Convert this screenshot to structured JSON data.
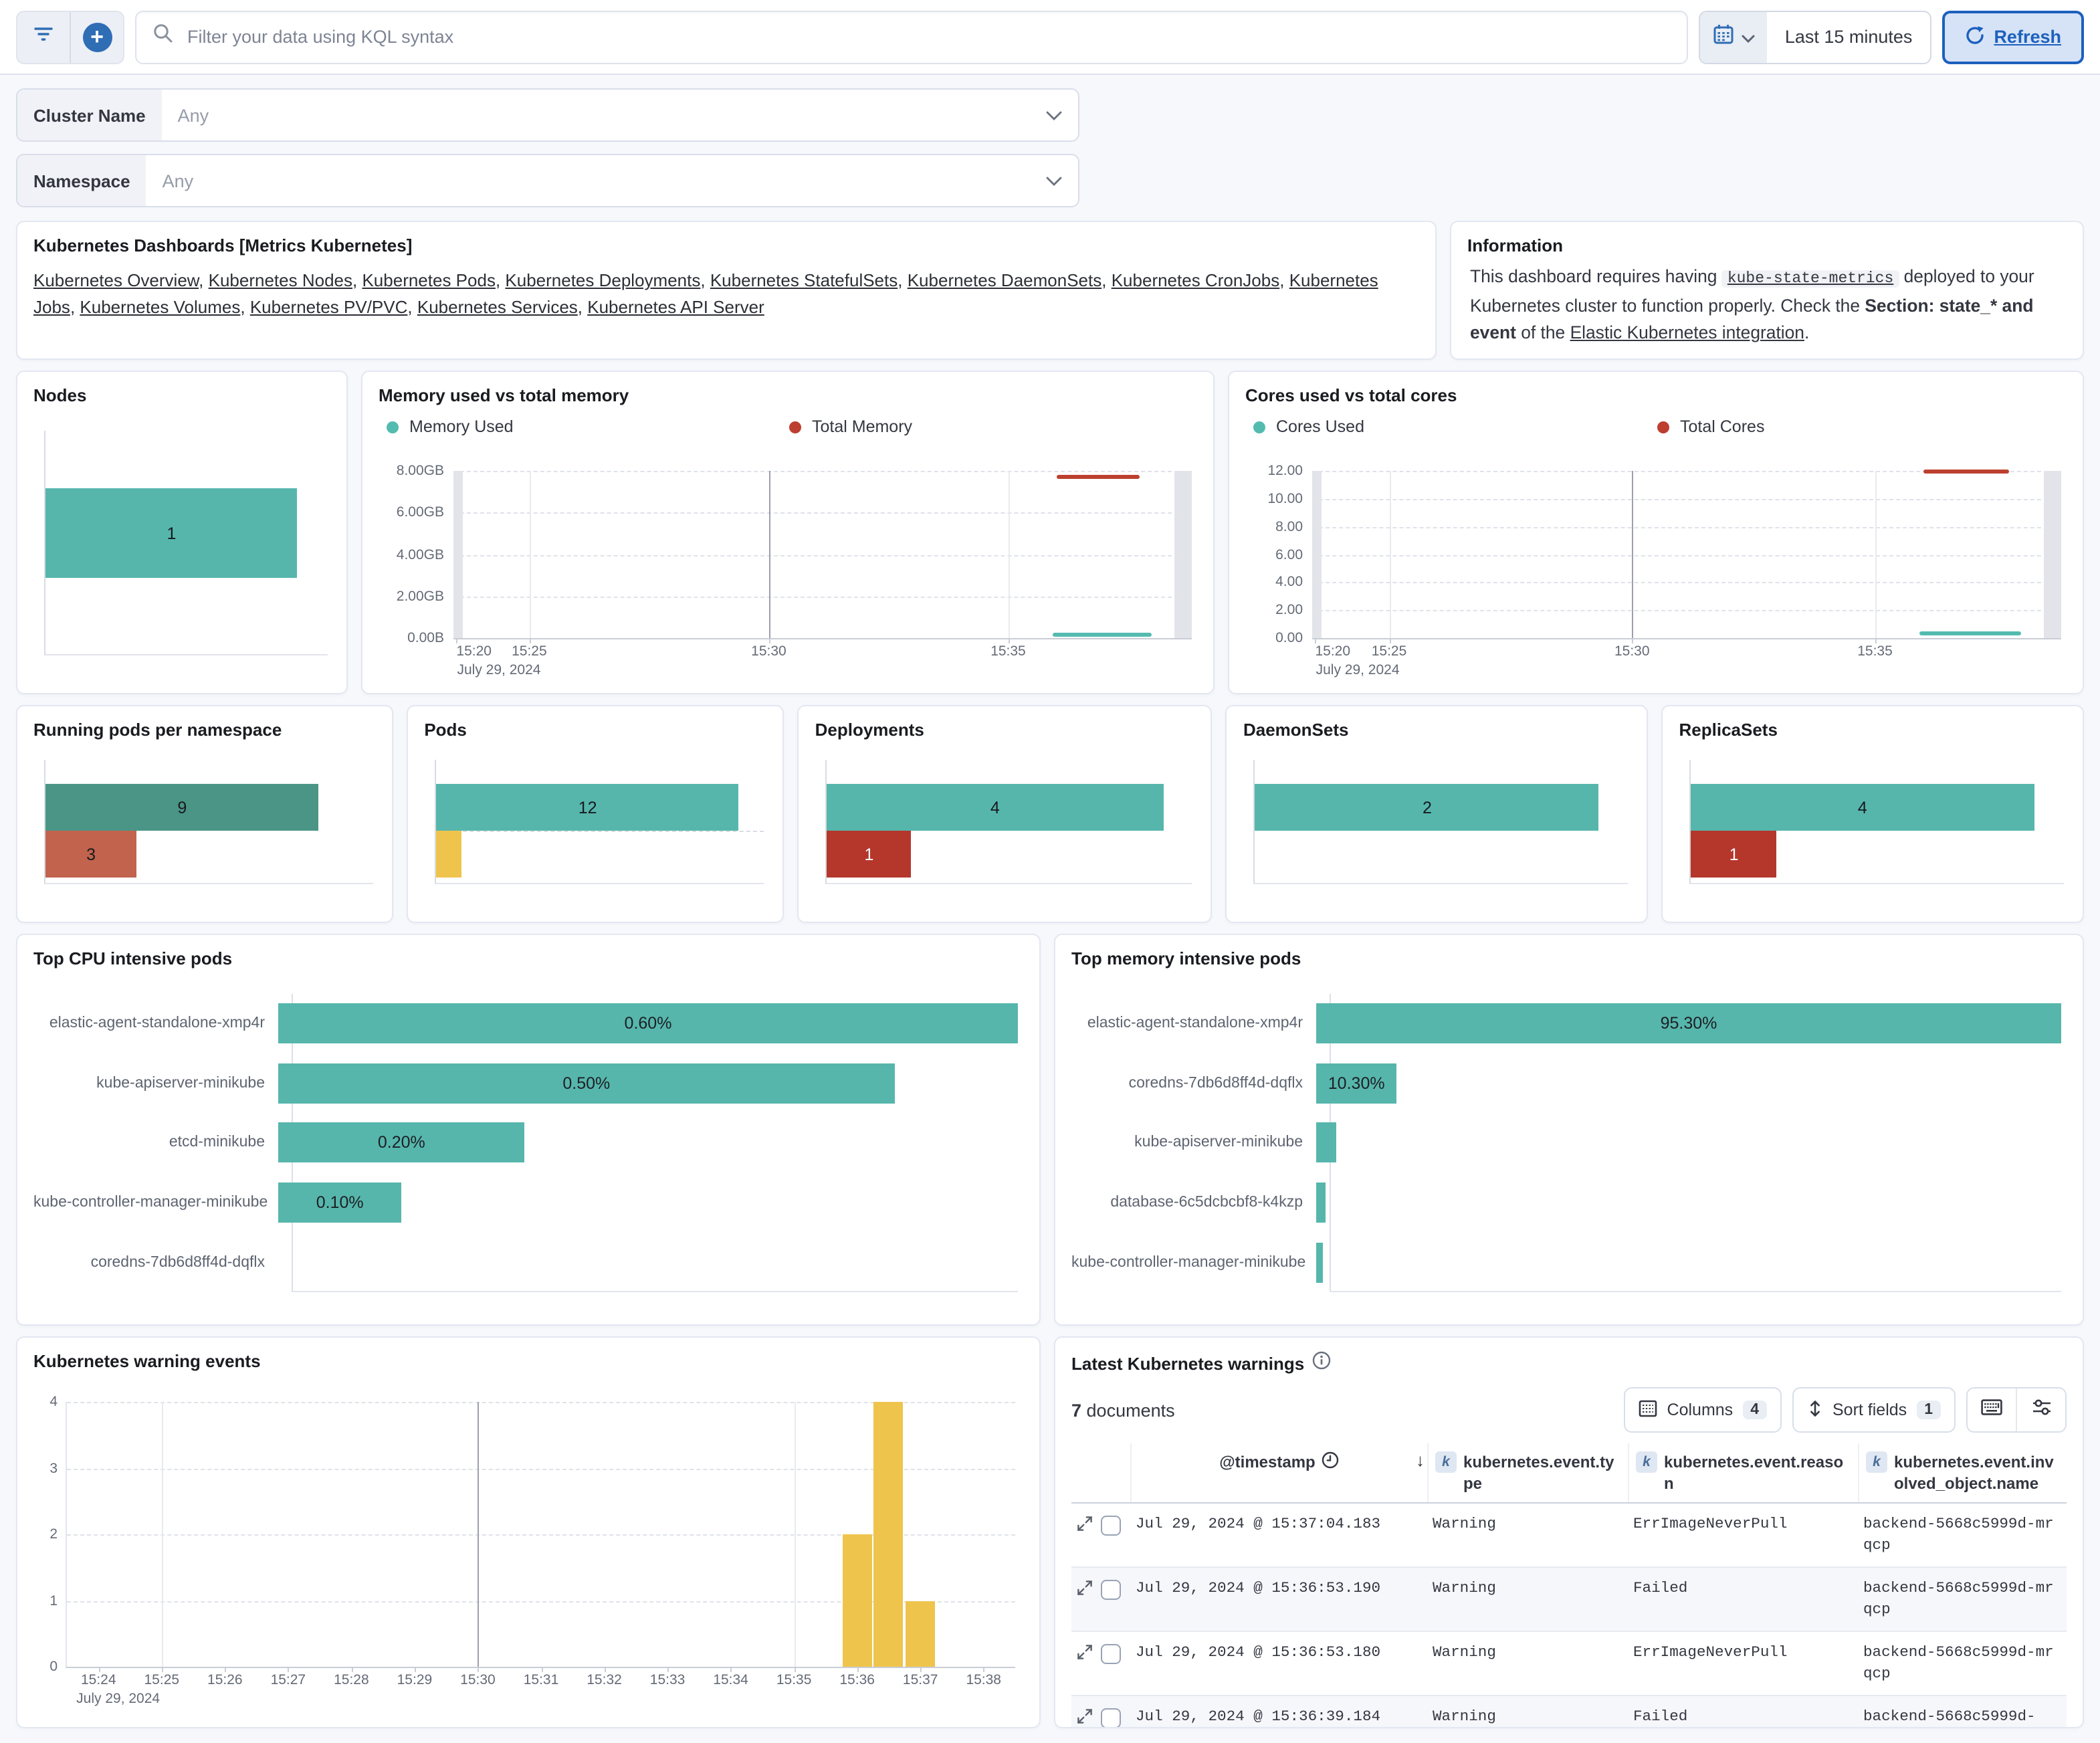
{
  "topbar": {
    "search_placeholder": "Filter your data using KQL syntax",
    "time_range": "Last 15 minutes",
    "refresh_label": "Refresh"
  },
  "filters": [
    {
      "label": "Cluster Name",
      "value": "Any"
    },
    {
      "label": "Namespace",
      "value": "Any"
    }
  ],
  "links_panel": {
    "title": "Kubernetes Dashboards [Metrics Kubernetes]",
    "links": [
      "Kubernetes Overview",
      "Kubernetes Nodes",
      "Kubernetes Pods",
      "Kubernetes Deployments",
      "Kubernetes StatefulSets",
      "Kubernetes DaemonSets",
      "Kubernetes CronJobs",
      "Kubernetes Jobs",
      "Kubernetes Volumes",
      "Kubernetes PV/PVC",
      "Kubernetes Services",
      "Kubernetes API Server"
    ]
  },
  "info_panel": {
    "title": "Information",
    "text_part1": "This dashboard requires having ",
    "code": "kube-state-metrics",
    "text_part2": " deployed to your Kubernetes cluster to function properly. Check the ",
    "bold": "Section: state_* and event",
    "text_part3": " of the ",
    "link": "Elastic Kubernetes integration",
    "text_part4": "."
  },
  "colors": {
    "teal": "#56b6ac",
    "dark_green": "#4a9586",
    "rust": "#c2634e",
    "dark_red": "#b5372c",
    "yellow": "#efc44d",
    "line_teal": "#54bbb0",
    "line_red": "#bd3f2f",
    "primary_blue": "#1d60bd"
  },
  "chart_data": [
    {
      "id": "nodes",
      "type": "bar",
      "orientation": "horizontal",
      "title": "Nodes",
      "axis_max": 1.12,
      "values": [
        1
      ],
      "labels": [
        "1"
      ],
      "colors": [
        "#56b6ac"
      ],
      "label_colors": [
        "#17191e"
      ]
    },
    {
      "id": "memory",
      "type": "line",
      "title": "Memory used vs total memory",
      "legend": [
        {
          "name": "Memory Used",
          "color": "#54bbb0"
        },
        {
          "name": "Total Memory",
          "color": "#bd3f2f"
        }
      ],
      "ylim": [
        0,
        8
      ],
      "yticks": [
        {
          "label": "8.00GB",
          "value": 8
        },
        {
          "label": "6.00GB",
          "value": 6
        },
        {
          "label": "4.00GB",
          "value": 4
        },
        {
          "label": "2.00GB",
          "value": 2
        },
        {
          "label": "0.00B",
          "value": 0
        }
      ],
      "x_domain": [
        "15:23:25",
        "15:38:50"
      ],
      "xticks": [
        {
          "label": "15:20",
          "time": "15:20:00"
        },
        {
          "label": "15:25",
          "time": "15:25:00",
          "grid": "light"
        },
        {
          "label": "15:30",
          "time": "15:30:00",
          "grid": "dark"
        },
        {
          "label": "15:35",
          "time": "15:35:00",
          "grid": "light"
        }
      ],
      "date_label": "July 29, 2024",
      "edge_bands": true,
      "series": [
        {
          "name": "Total Memory",
          "color": "#bd3f2f",
          "value": 7.65,
          "start": "15:36:00",
          "end": "15:37:45"
        },
        {
          "name": "Memory Used",
          "color": "#54bbb0",
          "value": 0.13,
          "start": "15:35:55",
          "end": "15:38:00"
        }
      ]
    },
    {
      "id": "cores",
      "type": "line",
      "title": "Cores used vs total cores",
      "legend": [
        {
          "name": "Cores Used",
          "color": "#54bbb0"
        },
        {
          "name": "Total Cores",
          "color": "#bd3f2f"
        }
      ],
      "ylim": [
        0,
        12
      ],
      "yticks": [
        {
          "label": "12.00",
          "value": 12
        },
        {
          "label": "10.00",
          "value": 10
        },
        {
          "label": "8.00",
          "value": 8
        },
        {
          "label": "6.00",
          "value": 6
        },
        {
          "label": "4.00",
          "value": 4
        },
        {
          "label": "2.00",
          "value": 2
        },
        {
          "label": "0.00",
          "value": 0
        }
      ],
      "x_domain": [
        "15:23:25",
        "15:38:50"
      ],
      "xticks": [
        {
          "label": "15:20",
          "time": "15:20:00"
        },
        {
          "label": "15:25",
          "time": "15:25:00",
          "grid": "light"
        },
        {
          "label": "15:30",
          "time": "15:30:00",
          "grid": "dark"
        },
        {
          "label": "15:35",
          "time": "15:35:00",
          "grid": "light"
        }
      ],
      "date_label": "July 29, 2024",
      "edge_bands": true,
      "series": [
        {
          "name": "Total Cores",
          "color": "#bd3f2f",
          "value": 11.9,
          "start": "15:36:00",
          "end": "15:37:45"
        },
        {
          "name": "Cores Used",
          "color": "#54bbb0",
          "value": 0.25,
          "start": "15:35:55",
          "end": "15:38:00"
        }
      ]
    },
    {
      "id": "running_pods",
      "type": "bar",
      "orientation": "horizontal",
      "title": "Running pods per namespace",
      "axis_max": 10.8,
      "values": [
        9,
        3
      ],
      "labels": [
        "9",
        "3"
      ],
      "colors": [
        "#4a9586",
        "#c2634e"
      ],
      "label_colors": [
        "#17191e",
        "#17191e"
      ]
    },
    {
      "id": "pods",
      "type": "bar",
      "orientation": "horizontal",
      "title": "Pods",
      "axis_max": 13,
      "values": [
        12,
        1
      ],
      "labels": [
        "12",
        ""
      ],
      "colors": [
        "#56b6ac",
        "#efc44d"
      ],
      "label_colors": [
        "#17191e",
        "#17191e"
      ],
      "dash_line_on": 1
    },
    {
      "id": "deployments",
      "type": "bar",
      "orientation": "horizontal",
      "title": "Deployments",
      "axis_max": 4.35,
      "values": [
        4,
        1
      ],
      "labels": [
        "4",
        "1"
      ],
      "colors": [
        "#56b6ac",
        "#b5372c"
      ],
      "label_colors": [
        "#17191e",
        "#ffffff"
      ]
    },
    {
      "id": "daemonsets",
      "type": "bar",
      "orientation": "horizontal",
      "title": "DaemonSets",
      "axis_max": 2.17,
      "values": [
        2
      ],
      "labels": [
        "2"
      ],
      "colors": [
        "#56b6ac"
      ],
      "label_colors": [
        "#17191e"
      ]
    },
    {
      "id": "replicasets",
      "type": "bar",
      "orientation": "horizontal",
      "title": "ReplicaSets",
      "axis_max": 4.35,
      "values": [
        4,
        1
      ],
      "labels": [
        "4",
        "1"
      ],
      "colors": [
        "#56b6ac",
        "#b5372c"
      ],
      "label_colors": [
        "#17191e",
        "#ffffff"
      ]
    },
    {
      "id": "top_cpu",
      "type": "bar",
      "orientation": "horizontal",
      "title": "Top CPU intensive pods",
      "axis_max": 0.6,
      "categories": [
        "elastic-agent-standalone-xmp4r",
        "kube-apiserver-minikube",
        "etcd-minikube",
        "kube-controller-manager-minikube",
        "coredns-7db6d8ff4d-dqflx"
      ],
      "values": [
        0.6,
        0.5,
        0.2,
        0.1,
        0
      ],
      "labels": [
        "0.60%",
        "0.50%",
        "0.20%",
        "0.10%",
        ""
      ],
      "color": "#56b6ac"
    },
    {
      "id": "top_memory",
      "type": "bar",
      "orientation": "horizontal",
      "title": "Top memory intensive pods",
      "axis_max": 95.3,
      "categories": [
        "elastic-agent-standalone-xmp4r",
        "coredns-7db6d8ff4d-dqflx",
        "kube-apiserver-minikube",
        "database-6c5dcbcbf8-k4kzp",
        "kube-controller-manager-minikube"
      ],
      "values": [
        95.3,
        10.3,
        2.6,
        1.2,
        0.9
      ],
      "labels": [
        "95.30%",
        "10.30%",
        "",
        "",
        ""
      ],
      "color": "#56b6ac"
    },
    {
      "id": "warning_events",
      "type": "bar",
      "orientation": "vertical",
      "title": "Kubernetes warning events",
      "color": "#efc44d",
      "ylim": [
        0,
        4
      ],
      "yticks": [
        {
          "label": "4",
          "value": 4
        },
        {
          "label": "3",
          "value": 3
        },
        {
          "label": "2",
          "value": 2
        },
        {
          "label": "1",
          "value": 1
        },
        {
          "label": "0",
          "value": 0
        }
      ],
      "x_domain": [
        "15:23:30",
        "15:38:30"
      ],
      "xticks": [
        {
          "label": "15:24",
          "time": "15:24:00"
        },
        {
          "label": "15:25",
          "time": "15:25:00",
          "grid": "light"
        },
        {
          "label": "15:26",
          "time": "15:26:00"
        },
        {
          "label": "15:27",
          "time": "15:27:00"
        },
        {
          "label": "15:28",
          "time": "15:28:00"
        },
        {
          "label": "15:29",
          "time": "15:29:00"
        },
        {
          "label": "15:30",
          "time": "15:30:00",
          "grid": "dark"
        },
        {
          "label": "15:31",
          "time": "15:31:00"
        },
        {
          "label": "15:32",
          "time": "15:32:00"
        },
        {
          "label": "15:33",
          "time": "15:33:00"
        },
        {
          "label": "15:34",
          "time": "15:34:00"
        },
        {
          "label": "15:35",
          "time": "15:35:00",
          "grid": "light"
        },
        {
          "label": "15:36",
          "time": "15:36:00"
        },
        {
          "label": "15:37",
          "time": "15:37:00"
        },
        {
          "label": "15:38",
          "time": "15:38:00"
        }
      ],
      "date_label": "July 29, 2024",
      "bars": [
        {
          "start": "15:35:45",
          "end": "15:36:15",
          "value": 2
        },
        {
          "start": "15:36:15",
          "end": "15:36:45",
          "value": 4
        },
        {
          "start": "15:36:45",
          "end": "15:37:15",
          "value": 1
        }
      ]
    }
  ],
  "warnings_table": {
    "title": "Latest Kubernetes warnings",
    "doc_count": "7",
    "doc_count_suffix": " documents",
    "columns_button": {
      "label": "Columns",
      "count": "4"
    },
    "sort_button": {
      "label": "Sort fields",
      "count": "1"
    },
    "headers": [
      "@timestamp",
      "kubernetes.event.type",
      "kubernetes.event.reason",
      "kubernetes.event.involved_object.name"
    ],
    "rows": [
      {
        "timestamp": "Jul 29, 2024 @ 15:37:04.183",
        "type": "Warning",
        "reason": "ErrImageNeverPull",
        "object": "backend-5668c5999d-mrqcp"
      },
      {
        "timestamp": "Jul 29, 2024 @ 15:36:53.190",
        "type": "Warning",
        "reason": "Failed",
        "object": "backend-5668c5999d-mrqcp"
      },
      {
        "timestamp": "Jul 29, 2024 @ 15:36:53.180",
        "type": "Warning",
        "reason": "ErrImageNeverPull",
        "object": "backend-5668c5999d-mrqcp"
      },
      {
        "timestamp": "Jul 29, 2024 @ 15:36:39.184",
        "type": "Warning",
        "reason": "Failed",
        "object": "backend-5668c5999d-"
      }
    ]
  }
}
